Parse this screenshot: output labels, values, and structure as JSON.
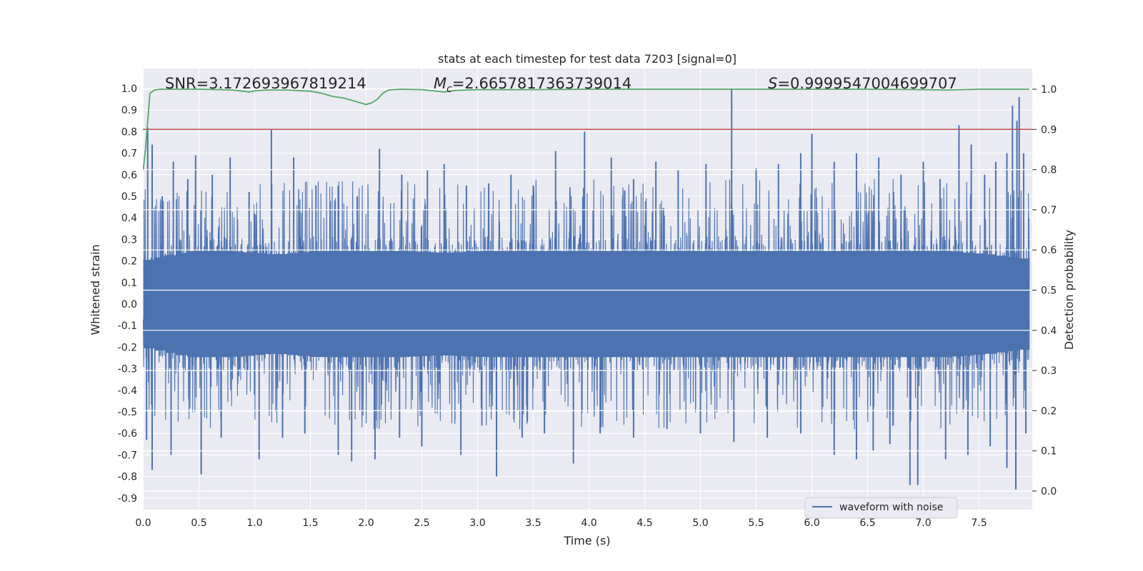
{
  "chart_data": {
    "type": "line",
    "title": "stats at each timestep for test data 7203 [signal=0]",
    "xlabel": "Time (s)",
    "ylabel": "Whitened strain",
    "y2label": "Detection probability",
    "xlim": [
      0.0,
      8.0
    ],
    "ylim": [
      -0.95,
      1.08
    ],
    "y2lim": [
      -0.05,
      1.05
    ],
    "xticks": [
      0.0,
      0.5,
      1.0,
      1.5,
      2.0,
      2.5,
      3.0,
      3.5,
      4.0,
      4.5,
      5.0,
      5.5,
      6.0,
      6.5,
      7.0,
      7.5
    ],
    "yticks": [
      -0.9,
      -0.8,
      -0.7,
      -0.6,
      -0.5,
      -0.4,
      -0.3,
      -0.2,
      -0.1,
      0.0,
      0.1,
      0.2,
      0.3,
      0.4,
      0.5,
      0.6,
      0.7,
      0.8,
      0.9,
      1.0
    ],
    "y2ticks": [
      0.0,
      0.1,
      0.2,
      0.3,
      0.4,
      0.5,
      0.6,
      0.7,
      0.8,
      0.9,
      1.0
    ],
    "grid": true,
    "legend_position": "lower-right",
    "annotations": {
      "snr": "SNR=3.172693967819214",
      "mc_symbol": "M",
      "mc_sub": "c",
      "mc_value": "=2.6657817363739014",
      "s_symbol": "S",
      "s_value": "=0.9999547004699707"
    },
    "threshold": {
      "axis": "y2",
      "value": 0.9,
      "color": "#c44e52"
    },
    "series": [
      {
        "name": "waveform with noise",
        "axis": "y",
        "color": "#4c72b0",
        "duration": 7.95,
        "band_envelope": [
          0.25,
          0.3,
          0.3,
          0.28,
          0.3,
          0.3,
          0.3,
          0.29,
          0.3,
          0.3,
          0.3,
          0.3,
          0.3,
          0.3,
          0.3,
          0.3,
          0.3,
          0.3,
          0.3,
          0.3,
          0.28,
          0.25
        ],
        "positive_peaks": [
          {
            "x": 0.04,
            "y": 0.82
          },
          {
            "x": 0.08,
            "y": 0.74
          },
          {
            "x": 0.17,
            "y": 0.5
          },
          {
            "x": 0.27,
            "y": 0.66
          },
          {
            "x": 0.4,
            "y": 0.58
          },
          {
            "x": 0.47,
            "y": 0.69
          },
          {
            "x": 0.62,
            "y": 0.6
          },
          {
            "x": 0.78,
            "y": 0.68
          },
          {
            "x": 0.95,
            "y": 0.52
          },
          {
            "x": 1.15,
            "y": 0.81
          },
          {
            "x": 1.35,
            "y": 0.68
          },
          {
            "x": 1.55,
            "y": 0.55
          },
          {
            "x": 1.75,
            "y": 0.55
          },
          {
            "x": 1.92,
            "y": 0.5
          },
          {
            "x": 2.12,
            "y": 0.72
          },
          {
            "x": 2.32,
            "y": 0.6
          },
          {
            "x": 2.55,
            "y": 0.62
          },
          {
            "x": 2.7,
            "y": 0.65
          },
          {
            "x": 2.9,
            "y": 0.55
          },
          {
            "x": 3.1,
            "y": 0.56
          },
          {
            "x": 3.3,
            "y": 0.6
          },
          {
            "x": 3.5,
            "y": 0.55
          },
          {
            "x": 3.7,
            "y": 0.71
          },
          {
            "x": 3.96,
            "y": 0.8
          },
          {
            "x": 4.2,
            "y": 0.68
          },
          {
            "x": 4.4,
            "y": 0.58
          },
          {
            "x": 4.6,
            "y": 0.66
          },
          {
            "x": 4.8,
            "y": 0.62
          },
          {
            "x": 5.05,
            "y": 0.65
          },
          {
            "x": 5.28,
            "y": 1.0
          },
          {
            "x": 5.5,
            "y": 0.63
          },
          {
            "x": 5.7,
            "y": 0.65
          },
          {
            "x": 5.9,
            "y": 0.7
          },
          {
            "x": 6.0,
            "y": 0.79
          },
          {
            "x": 6.2,
            "y": 0.66
          },
          {
            "x": 6.4,
            "y": 0.7
          },
          {
            "x": 6.6,
            "y": 0.68
          },
          {
            "x": 6.8,
            "y": 0.6
          },
          {
            "x": 7.0,
            "y": 0.66
          },
          {
            "x": 7.15,
            "y": 0.58
          },
          {
            "x": 7.32,
            "y": 0.83
          },
          {
            "x": 7.43,
            "y": 0.74
          },
          {
            "x": 7.55,
            "y": 0.6
          },
          {
            "x": 7.65,
            "y": 0.66
          },
          {
            "x": 7.75,
            "y": 0.7
          },
          {
            "x": 7.8,
            "y": 0.92
          },
          {
            "x": 7.84,
            "y": 0.85
          },
          {
            "x": 7.86,
            "y": 0.96
          },
          {
            "x": 7.9,
            "y": 0.7
          }
        ],
        "negative_peaks": [
          {
            "x": 0.03,
            "y": -0.63
          },
          {
            "x": 0.08,
            "y": -0.77
          },
          {
            "x": 0.25,
            "y": -0.7
          },
          {
            "x": 0.52,
            "y": -0.79
          },
          {
            "x": 0.7,
            "y": -0.62
          },
          {
            "x": 1.04,
            "y": -0.72
          },
          {
            "x": 1.25,
            "y": -0.62
          },
          {
            "x": 1.45,
            "y": -0.6
          },
          {
            "x": 1.75,
            "y": -0.7
          },
          {
            "x": 1.87,
            "y": -0.73
          },
          {
            "x": 2.08,
            "y": -0.72
          },
          {
            "x": 2.3,
            "y": -0.62
          },
          {
            "x": 2.5,
            "y": -0.66
          },
          {
            "x": 2.85,
            "y": -0.7
          },
          {
            "x": 3.17,
            "y": -0.8
          },
          {
            "x": 3.4,
            "y": -0.62
          },
          {
            "x": 3.6,
            "y": -0.6
          },
          {
            "x": 3.86,
            "y": -0.74
          },
          {
            "x": 4.1,
            "y": -0.6
          },
          {
            "x": 4.4,
            "y": -0.62
          },
          {
            "x": 4.7,
            "y": -0.58
          },
          {
            "x": 5.0,
            "y": -0.6
          },
          {
            "x": 5.3,
            "y": -0.64
          },
          {
            "x": 5.6,
            "y": -0.62
          },
          {
            "x": 5.9,
            "y": -0.6
          },
          {
            "x": 6.2,
            "y": -0.7
          },
          {
            "x": 6.4,
            "y": -0.72
          },
          {
            "x": 6.55,
            "y": -0.68
          },
          {
            "x": 6.7,
            "y": -0.65
          },
          {
            "x": 6.88,
            "y": -0.84
          },
          {
            "x": 6.95,
            "y": -0.84
          },
          {
            "x": 7.2,
            "y": -0.72
          },
          {
            "x": 7.4,
            "y": -0.7
          },
          {
            "x": 7.6,
            "y": -0.66
          },
          {
            "x": 7.75,
            "y": -0.76
          },
          {
            "x": 7.83,
            "y": -0.86
          },
          {
            "x": 7.92,
            "y": -0.6
          }
        ]
      },
      {
        "name": "",
        "axis": "y2",
        "color": "#55a868",
        "x": [
          0.0,
          0.02,
          0.04,
          0.06,
          0.1,
          0.15,
          0.3,
          0.5,
          0.7,
          0.8,
          0.9,
          0.95,
          1.0,
          1.1,
          1.3,
          1.5,
          1.6,
          1.7,
          1.8,
          1.9,
          2.0,
          2.05,
          2.1,
          2.15,
          2.2,
          2.3,
          2.5,
          2.6,
          2.7,
          2.8,
          3.0,
          3.2,
          3.5,
          4.0,
          4.5,
          5.0,
          5.5,
          6.0,
          6.5,
          7.0,
          7.2,
          7.5,
          7.95
        ],
        "values": [
          0.8,
          0.85,
          0.92,
          0.99,
          0.998,
          1.0,
          1.0,
          1.0,
          0.999,
          0.998,
          0.995,
          0.993,
          0.996,
          0.998,
          0.998,
          0.995,
          0.99,
          0.982,
          0.978,
          0.97,
          0.962,
          0.966,
          0.975,
          0.99,
          0.998,
          1.0,
          0.999,
          0.996,
          0.993,
          0.997,
          0.999,
          0.999,
          0.999,
          1.0,
          1.0,
          1.0,
          1.0,
          1.0,
          1.0,
          0.999,
          0.998,
          1.0,
          1.0
        ]
      }
    ]
  }
}
